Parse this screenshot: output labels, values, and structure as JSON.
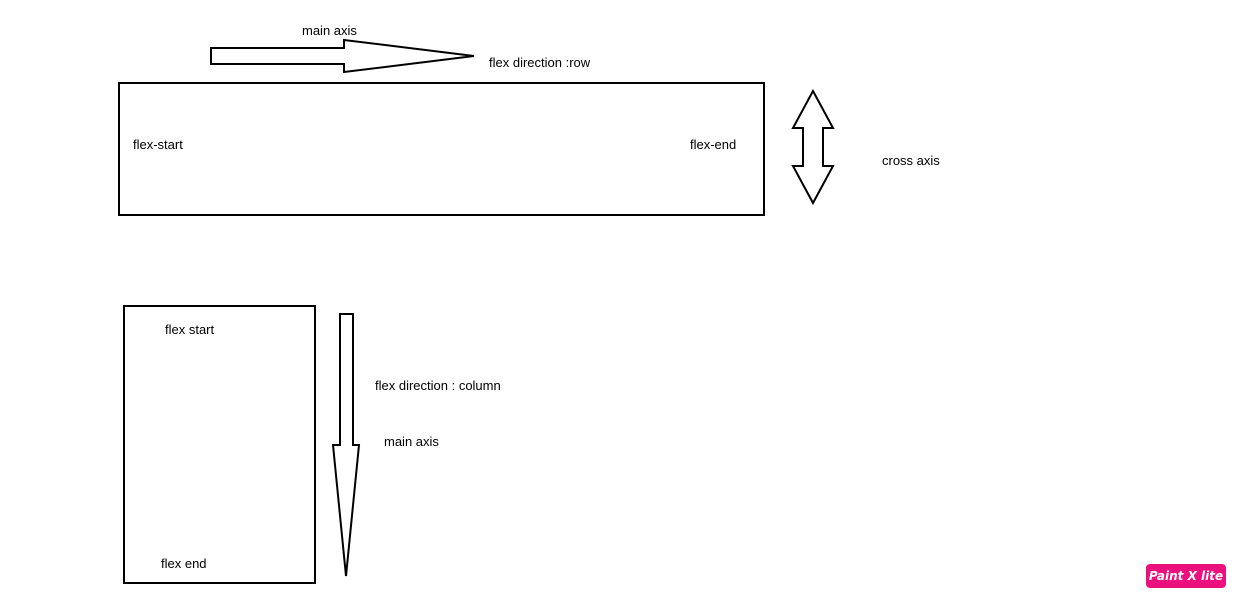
{
  "row": {
    "axis_label": "main axis",
    "direction_label": "flex direction :row",
    "start_label": "flex-start",
    "end_label": "flex-end",
    "cross_label": "cross axis"
  },
  "column": {
    "start_label": "flex start",
    "end_label": "flex end",
    "direction_label": "flex direction : column",
    "axis_label": "main axis"
  },
  "watermark": {
    "text": "Paint X lite",
    "color": "#ec0f7e"
  },
  "icons": {
    "row_arrow": "right-arrow-icon",
    "cross_arrow": "up-down-arrow-icon",
    "column_arrow": "down-arrow-icon"
  }
}
